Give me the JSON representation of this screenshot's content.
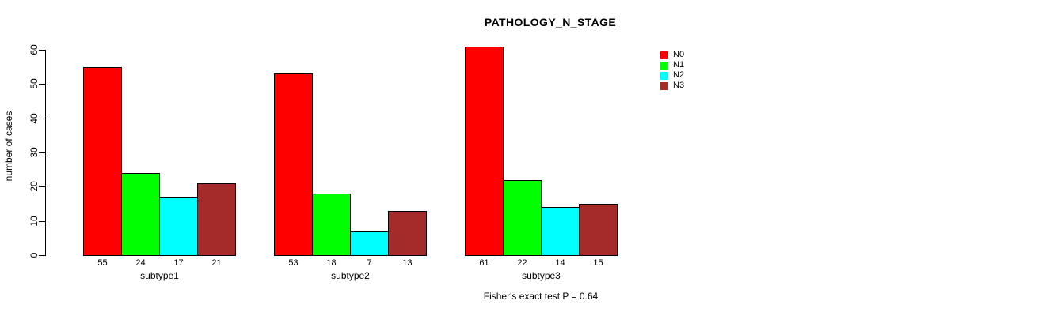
{
  "chart_data": {
    "type": "bar",
    "title": "PATHOLOGY_N_STAGE",
    "ylabel": "number of cases",
    "xlabel": "",
    "ylim": [
      0,
      60
    ],
    "yticks": [
      0,
      10,
      20,
      30,
      40,
      50,
      60
    ],
    "categories": [
      "subtype1",
      "subtype2",
      "subtype3"
    ],
    "series": [
      {
        "name": "N0",
        "color": "#FF0000",
        "values": [
          55,
          53,
          61
        ]
      },
      {
        "name": "N1",
        "color": "#00FF00",
        "values": [
          24,
          18,
          22
        ]
      },
      {
        "name": "N2",
        "color": "#00FFFF",
        "values": [
          17,
          7,
          14
        ]
      },
      {
        "name": "N3",
        "color": "#A52A2A",
        "values": [
          21,
          13,
          15
        ]
      }
    ],
    "bar_value_labels": true,
    "annotation": "Fisher's exact test P = 0.64",
    "legend_position": "right",
    "grid": false,
    "background": "#FFFFFF",
    "text_color": "#000000"
  }
}
